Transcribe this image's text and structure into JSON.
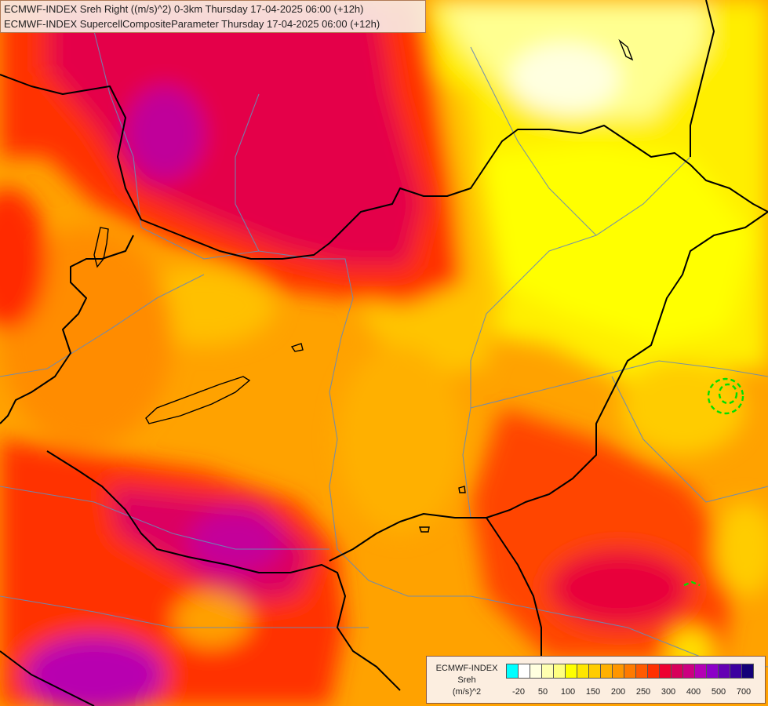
{
  "header": {
    "line1": "ECMWF-INDEX Sreh Right ((m/s)^2) 0-3km Thursday 17-04-2025 06:00 (+12h)",
    "line2": "ECMWF-INDEX SupercellCompositeParameter Thursday 17-04-2025 06:00 (+12h)"
  },
  "legend": {
    "label_line1": "ECMWF-INDEX",
    "label_line2": "Sreh",
    "label_line3": "(m/s)^2",
    "colors": [
      "#00ffff",
      "#ffffff",
      "#ffffe0",
      "#ffffb0",
      "#ffff80",
      "#ffff00",
      "#ffe600",
      "#ffcc00",
      "#ffb000",
      "#ff9600",
      "#ff7a00",
      "#ff5a00",
      "#ff3000",
      "#ee0030",
      "#d8005a",
      "#cc0080",
      "#b400b4",
      "#8c00c8",
      "#6400b4",
      "#3c00a0",
      "#140078"
    ],
    "ticks": [
      "-20",
      "50",
      "100",
      "150",
      "200",
      "250",
      "300",
      "400",
      "500",
      "700"
    ]
  },
  "map_palette": {
    "yellow_light": "#ffffc0",
    "yellow": "#ffff00",
    "gold": "#ffcc00",
    "orange": "#ffa000",
    "dark_orange": "#ff6a00",
    "red": "#ff2a00",
    "crimson": "#e0004a",
    "magenta": "#c00096",
    "border_color": "#000000",
    "river_color": "#6a8ab4",
    "scp_contour_color": "#00e000"
  }
}
